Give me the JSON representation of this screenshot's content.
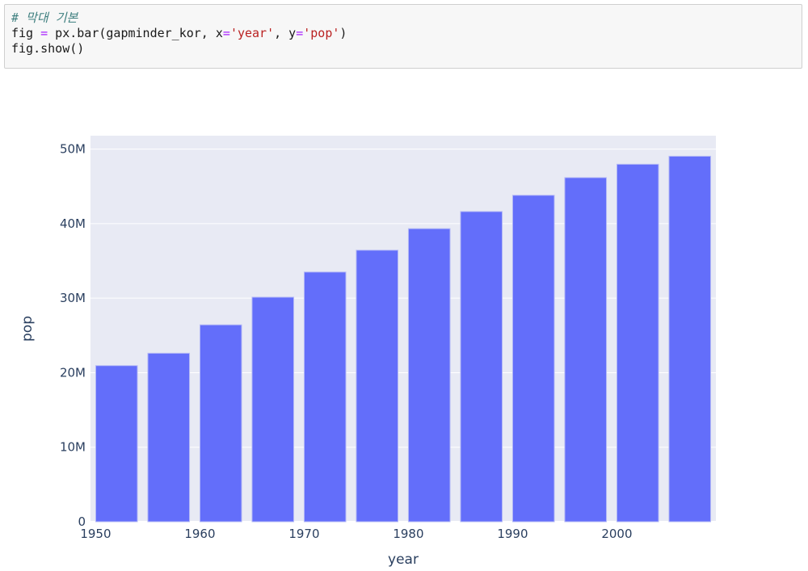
{
  "code_cell": {
    "language": "python",
    "lines": [
      [
        {
          "type": "comment",
          "text": "# 막대 기본"
        }
      ],
      [
        {
          "type": "plain",
          "text": "fig "
        },
        {
          "type": "operator",
          "text": "="
        },
        {
          "type": "plain",
          "text": " px.bar(gapminder_kor, x"
        },
        {
          "type": "operator",
          "text": "="
        },
        {
          "type": "string",
          "text": "'year'"
        },
        {
          "type": "plain",
          "text": ", y"
        },
        {
          "type": "operator",
          "text": "="
        },
        {
          "type": "string",
          "text": "'pop'"
        },
        {
          "type": "plain",
          "text": ")"
        }
      ],
      [
        {
          "type": "plain",
          "text": "fig.show()"
        }
      ]
    ]
  },
  "chart_data": {
    "type": "bar",
    "title": "",
    "xlabel": "year",
    "ylabel": "pop",
    "x": [
      1952,
      1957,
      1962,
      1967,
      1972,
      1977,
      1982,
      1987,
      1992,
      1997,
      2002,
      2007
    ],
    "values": [
      20947571,
      22611552,
      26420307,
      30131000,
      33505000,
      36436000,
      39326000,
      41622000,
      43805450,
      46173816,
      47969150,
      49044790
    ],
    "bar_width_in_x_units": 4,
    "x_ticks": [
      {
        "v": 1950,
        "label": "1950"
      },
      {
        "v": 1960,
        "label": "1960"
      },
      {
        "v": 1970,
        "label": "1970"
      },
      {
        "v": 1980,
        "label": "1980"
      },
      {
        "v": 1990,
        "label": "1990"
      },
      {
        "v": 2000,
        "label": "2000"
      }
    ],
    "y_ticks": [
      {
        "v": 0,
        "label": "0"
      },
      {
        "v": 10000000,
        "label": "10M"
      },
      {
        "v": 20000000,
        "label": "20M"
      },
      {
        "v": 30000000,
        "label": "30M"
      },
      {
        "v": 40000000,
        "label": "40M"
      },
      {
        "v": 50000000,
        "label": "50M"
      }
    ],
    "xlim": [
      1949.5,
      2009.5
    ],
    "ylim": [
      0,
      51800000
    ],
    "grid": true,
    "legend_visible": false
  },
  "colors": {
    "bar": "#636EFA",
    "bar_edge": "#b7bcf6",
    "plot_bg": "#E8EAF4",
    "grid_line": "#FFFFFF",
    "axis_text": "#2A3F5F",
    "cell_bg": "#F7F7F7",
    "cell_border": "#CFCFCF",
    "code_plain": "#1a1a1a",
    "code_comment": "#408080",
    "code_operator": "#AA22FF",
    "code_string": "#BA2121"
  }
}
